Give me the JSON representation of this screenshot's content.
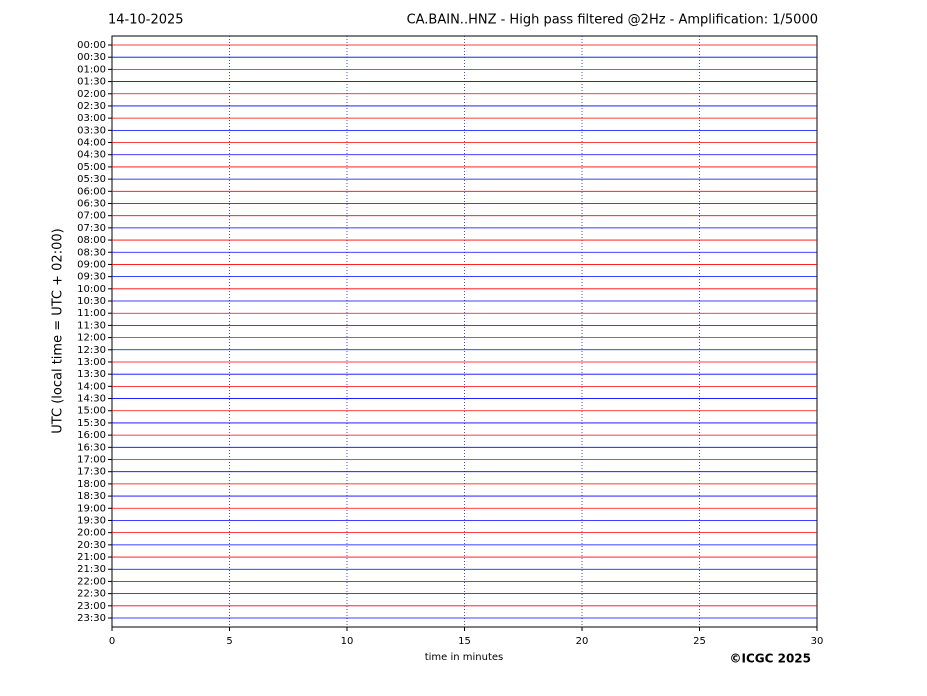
{
  "chart_data": {
    "type": "helicorder",
    "title_left": "14-10-2025",
    "title": "CA.BAIN..HNZ - High pass filtered @2Hz - Amplification: 1/5000",
    "y_label": "UTC (local time = UTC + 02:00)",
    "x_label": "time in minutes",
    "credit": "©ICGC 2025",
    "categories": [
      "00:00",
      "00:30",
      "01:00",
      "01:30",
      "02:00",
      "02:30",
      "03:00",
      "03:30",
      "04:00",
      "04:30",
      "05:00",
      "05:30",
      "06:00",
      "06:30",
      "07:00",
      "07:30",
      "08:00",
      "08:30",
      "09:00",
      "09:30",
      "10:00",
      "10:30",
      "11:00",
      "11:30",
      "12:00",
      "12:30",
      "13:00",
      "13:30",
      "14:00",
      "14:30",
      "15:00",
      "15:30",
      "16:00",
      "16:30",
      "17:00",
      "17:30",
      "18:00",
      "18:30",
      "19:00",
      "19:30",
      "20:00",
      "20:30",
      "21:00",
      "21:30",
      "22:00",
      "22:30",
      "23:00",
      "23:30"
    ],
    "line_colors": [
      "#ff0000",
      "#0000ff"
    ],
    "xlim": [
      0,
      30
    ],
    "xticks": [
      0,
      5,
      10,
      15,
      20,
      25,
      30
    ],
    "grid": true,
    "grid_color": "#0000aa"
  }
}
